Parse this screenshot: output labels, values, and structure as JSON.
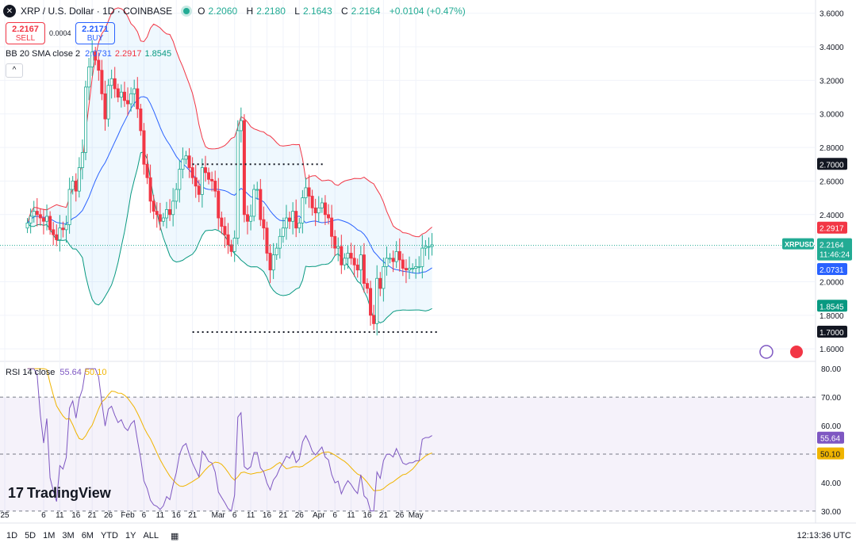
{
  "header": {
    "symbol": "XRP / U.S. Dollar · 1D · COINBASE",
    "logo": "✕",
    "ohlc": [
      {
        "k": "O",
        "v": "2.2060"
      },
      {
        "k": "H",
        "v": "2.2180"
      },
      {
        "k": "L",
        "v": "2.1643"
      },
      {
        "k": "C",
        "v": "2.2164"
      }
    ],
    "change": "+0.0104 (+0.47%)"
  },
  "trade": {
    "sell_price": "2.2167",
    "sell_label": "SELL",
    "buy_price": "2.2171",
    "buy_label": "BUY",
    "spread": "0.0004"
  },
  "bb_legend": {
    "name": "BB 20 SMA close 2",
    "mid": "2.0731",
    "upper": "2.2917",
    "lower": "1.8545"
  },
  "collapse_icon": "^",
  "rsi_legend": {
    "name": "RSI 14 close",
    "rsi": "55.64",
    "ma": "50.10"
  },
  "branding": {
    "text": "TradingView",
    "mark": "17"
  },
  "time_ranges": [
    "1D",
    "5D",
    "1M",
    "3M",
    "6M",
    "YTD",
    "1Y",
    "ALL"
  ],
  "calendar_icon": "▦",
  "clock": "12:13:36 UTC",
  "colors": {
    "up": "#22ab94",
    "down": "#f23645",
    "basis": "#2962ff",
    "upper": "#f23645",
    "lower": "#089981",
    "rsi": "#7e57c2",
    "rsi_ma": "#f0b400"
  },
  "chart_data": [
    {
      "type": "candlestick",
      "title": "XRP / U.S. Dollar · 1D · COINBASE",
      "y_ticks": [
        "1.6000",
        "1.8000",
        "2.0000",
        "2.2000",
        "2.4000",
        "2.6000",
        "2.8000",
        "3.0000",
        "3.2000",
        "3.4000",
        "3.6000"
      ],
      "ylim": [
        1.53,
        3.66
      ],
      "x_ticks": [
        {
          "label": "25",
          "date": "2024-12-25"
        },
        {
          "label": "6",
          "date": "2025-01-06"
        },
        {
          "label": "11",
          "date": "2025-01-11"
        },
        {
          "label": "16",
          "date": "2025-01-16"
        },
        {
          "label": "21",
          "date": "2025-01-21"
        },
        {
          "label": "26",
          "date": "2025-01-26"
        },
        {
          "label": "Feb",
          "date": "2025-02-01"
        },
        {
          "label": "6",
          "date": "2025-02-06"
        },
        {
          "label": "11",
          "date": "2025-02-11"
        },
        {
          "label": "16",
          "date": "2025-02-16"
        },
        {
          "label": "21",
          "date": "2025-02-21"
        },
        {
          "label": "Mar",
          "date": "2025-03-01"
        },
        {
          "label": "6",
          "date": "2025-03-06"
        },
        {
          "label": "11",
          "date": "2025-03-11"
        },
        {
          "label": "16",
          "date": "2025-03-16"
        },
        {
          "label": "21",
          "date": "2025-03-21"
        },
        {
          "label": "26",
          "date": "2025-03-26"
        },
        {
          "label": "Apr",
          "date": "2025-04-01"
        },
        {
          "label": "6",
          "date": "2025-04-06"
        },
        {
          "label": "11",
          "date": "2025-04-11"
        },
        {
          "label": "16",
          "date": "2025-04-16"
        },
        {
          "label": "21",
          "date": "2025-04-21"
        },
        {
          "label": "26",
          "date": "2025-04-26"
        },
        {
          "label": "May",
          "date": "2025-05-01"
        }
      ],
      "start_date": "2025-01-01",
      "closes": [
        2.35,
        2.39,
        2.42,
        2.4,
        2.38,
        2.36,
        2.39,
        2.31,
        2.28,
        2.25,
        2.32,
        2.31,
        2.34,
        2.55,
        2.6,
        2.54,
        2.68,
        2.77,
        3.16,
        3.28,
        3.37,
        3.32,
        3.26,
        3.12,
        2.97,
        3.17,
        3.21,
        3.15,
        3.1,
        3.13,
        3.08,
        3.06,
        3.12,
        3.15,
        3.03,
        2.9,
        2.7,
        2.62,
        2.48,
        2.42,
        2.4,
        2.36,
        2.38,
        2.43,
        2.4,
        2.48,
        2.55,
        2.67,
        2.73,
        2.75,
        2.68,
        2.62,
        2.57,
        2.52,
        2.68,
        2.65,
        2.61,
        2.6,
        2.54,
        2.38,
        2.33,
        2.28,
        2.22,
        2.18,
        2.26,
        2.9,
        2.96,
        2.4,
        2.36,
        2.39,
        2.55,
        2.55,
        2.37,
        2.32,
        2.17,
        2.07,
        2.16,
        2.2,
        2.27,
        2.32,
        2.38,
        2.36,
        2.42,
        2.32,
        2.35,
        2.5,
        2.56,
        2.51,
        2.44,
        2.41,
        2.44,
        2.47,
        2.4,
        2.38,
        2.27,
        2.2,
        2.21,
        2.1,
        2.14,
        2.17,
        2.14,
        2.1,
        2.07,
        2.16,
        1.99,
        1.96,
        1.8,
        1.75,
        2.02,
        1.96,
        2.09,
        2.14,
        2.14,
        2.12,
        2.18,
        2.13,
        2.08,
        2.07,
        2.08,
        2.08,
        2.09,
        2.09,
        2.2,
        2.21,
        2.21,
        2.22
      ],
      "pivots": [
        [
          2.35,
          2.4,
          2.32,
          2.39
        ],
        [
          2.42,
          2.36,
          2.31,
          2.38
        ],
        [
          2.28,
          2.25,
          2.31,
          2.34
        ],
        [
          2.68,
          2.77,
          3.16,
          3.28
        ],
        [
          3.32,
          3.26,
          2.9,
          3.17
        ],
        [
          3.15,
          3.1,
          3.06,
          3.12
        ],
        [
          3.03,
          2.9,
          2.7,
          2.62
        ],
        [
          2.48,
          2.36,
          2.4,
          2.43
        ],
        [
          2.55,
          2.67,
          2.73,
          2.62
        ],
        [
          2.54,
          2.38,
          2.28,
          2.18
        ],
        [
          2.96,
          2.4,
          2.55,
          2.37
        ],
        [
          2.17,
          2.07,
          2.27,
          2.38
        ],
        [
          2.42,
          2.5,
          2.41,
          2.47
        ],
        [
          2.27,
          2.1,
          2.07,
          1.96
        ],
        [
          1.75,
          2.02,
          2.14,
          2.08
        ],
        [
          2.2,
          2.21,
          2.22,
          2.22
        ]
      ],
      "series": [
        {
          "name": "BB 20 SMA close 2"
        },
        {
          "name": "RSI 14 close"
        }
      ],
      "last_price_tag": {
        "symbol": "XRPUSD",
        "price": "2.2164",
        "countdown": "11:46:24"
      },
      "value_tags": {
        "upper": "2.2917",
        "basis": "2.0731",
        "lower": "1.8545"
      },
      "horizontal_lines": [
        {
          "label": "2.7000",
          "value": 2.7,
          "from": "2025-02-21",
          "to": "2025-03-21"
        },
        {
          "label": "1.7000",
          "value": 1.7,
          "from": "2025-02-21",
          "to": "2025-04-26"
        }
      ]
    },
    {
      "type": "line",
      "title": "RSI 14 close",
      "y_ticks": [
        "30.00",
        "40.00",
        "50.00",
        "60.00",
        "70.00",
        "80.00"
      ],
      "ylim": [
        28,
        82
      ],
      "bands": [
        30,
        50,
        70
      ],
      "rsi_tag": "55.64",
      "ma_tag": "50.10"
    }
  ]
}
